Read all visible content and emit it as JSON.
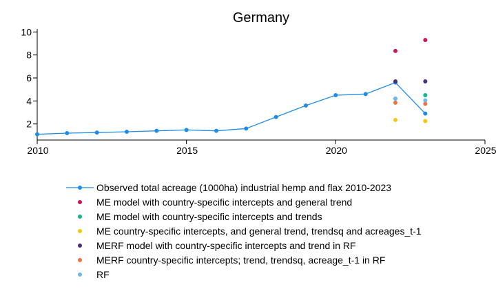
{
  "chart_data": {
    "type": "scatter",
    "title": "Germany",
    "xlabel": "",
    "ylabel": "",
    "xlim": [
      2010,
      2025
    ],
    "ylim": [
      0.6,
      10.5
    ],
    "x_ticks": [
      2010,
      2015,
      2020,
      2025
    ],
    "y_ticks": [
      2,
      4,
      6,
      8,
      10
    ],
    "grid": false,
    "legend_position": "bottom",
    "series": [
      {
        "name": "Observed total acreage (1000ha) industrial hemp and flax 2010-2023",
        "kind": "line",
        "color": "#1f8ce6",
        "x": [
          2010,
          2011,
          2012,
          2013,
          2014,
          2015,
          2016,
          2017,
          2018,
          2019,
          2020,
          2021,
          2022,
          2023
        ],
        "y": [
          1.1,
          1.2,
          1.25,
          1.32,
          1.4,
          1.48,
          1.4,
          1.6,
          2.6,
          3.6,
          4.5,
          4.6,
          5.6,
          2.9
        ]
      },
      {
        "name": "ME model with country-specific intercepts and general trend",
        "kind": "scatter",
        "color": "#c8155e",
        "x": [
          2022,
          2023
        ],
        "y": [
          8.35,
          9.3
        ]
      },
      {
        "name": "ME model with country-specific intercepts and trends",
        "kind": "scatter",
        "color": "#13b789",
        "x": [
          2022,
          2023
        ],
        "y": [
          4.2,
          4.5
        ]
      },
      {
        "name": "ME country-specific intercepts, and general trend, trendsq and acreages_t-1",
        "kind": "scatter",
        "color": "#f2c80f",
        "x": [
          2022,
          2023
        ],
        "y": [
          2.35,
          2.25
        ]
      },
      {
        "name": "MERF model with country-specific intercepts and trend in RF",
        "kind": "scatter",
        "color": "#4b2b82",
        "x": [
          2022,
          2023
        ],
        "y": [
          5.7,
          5.7
        ]
      },
      {
        "name": "MERF country-specific intercepts; trend, trendsq, acreage_t-1 in RF",
        "kind": "scatter",
        "color": "#f07042",
        "x": [
          2022,
          2023
        ],
        "y": [
          3.85,
          3.75
        ]
      },
      {
        "name": "RF",
        "kind": "scatter",
        "color": "#6cb8ea",
        "x": [
          2022,
          2023
        ],
        "y": [
          4.2,
          4.05
        ]
      }
    ]
  }
}
